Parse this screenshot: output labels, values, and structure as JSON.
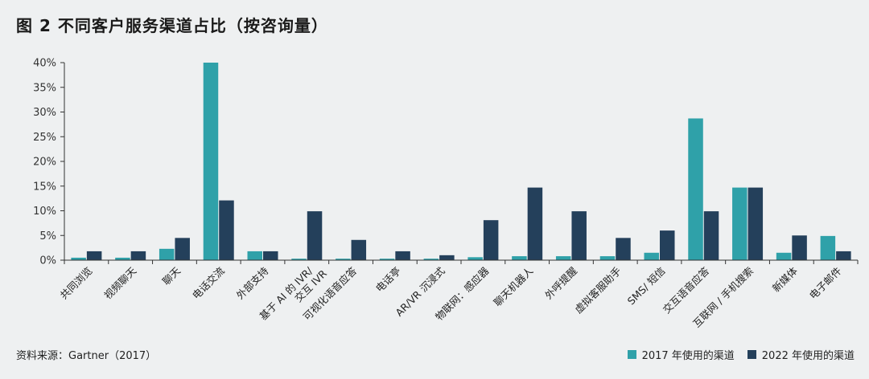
{
  "title": "图 2  不同客户服务渠道占比（按咨询量）",
  "source": "资料来源：Gartner（2017）",
  "colors": {
    "s2017": "#2fa1a9",
    "s2022": "#24405b",
    "axis": "#333333"
  },
  "chart_data": {
    "type": "bar",
    "title": "图 2  不同客户服务渠道占比（按咨询量）",
    "xlabel": "",
    "ylabel": "",
    "ylim": [
      0,
      40
    ],
    "yticks": [
      0,
      5,
      10,
      15,
      20,
      25,
      30,
      35,
      40
    ],
    "ytick_labels": [
      "0%",
      "5%",
      "10%",
      "15%",
      "20%",
      "25%",
      "30%",
      "35%",
      "40%"
    ],
    "grid": false,
    "legend_position": "bottom-right",
    "categories": [
      "共同浏览",
      "视频聊天",
      "聊天",
      "电话交流",
      "外部支持",
      "基于 AI 的 IVR/\n交互 IVR",
      "可视化语音应答",
      "电话亭",
      "AR/VR 沉浸式",
      "物联网：感应器",
      "聊天机器人",
      "外呼提醒",
      "虚拟客服助手",
      "SMS/ 短信",
      "交互语音应答",
      "互联网 / 手机搜索",
      "新媒体",
      "电子邮件"
    ],
    "series": [
      {
        "name": "2017 年使用的渠道",
        "values": [
          0.5,
          0.5,
          2.3,
          40,
          1.8,
          0.3,
          0.3,
          0.3,
          0.3,
          0.6,
          0.8,
          0.8,
          0.8,
          1.5,
          28.7,
          14.7,
          1.5,
          4.9
        ]
      },
      {
        "name": "2022 年使用的渠道",
        "values": [
          1.8,
          1.8,
          4.5,
          12.1,
          1.8,
          9.9,
          4.1,
          1.8,
          1.0,
          8.1,
          14.7,
          9.9,
          4.5,
          6.0,
          9.9,
          14.7,
          5.0,
          1.8
        ]
      }
    ]
  }
}
